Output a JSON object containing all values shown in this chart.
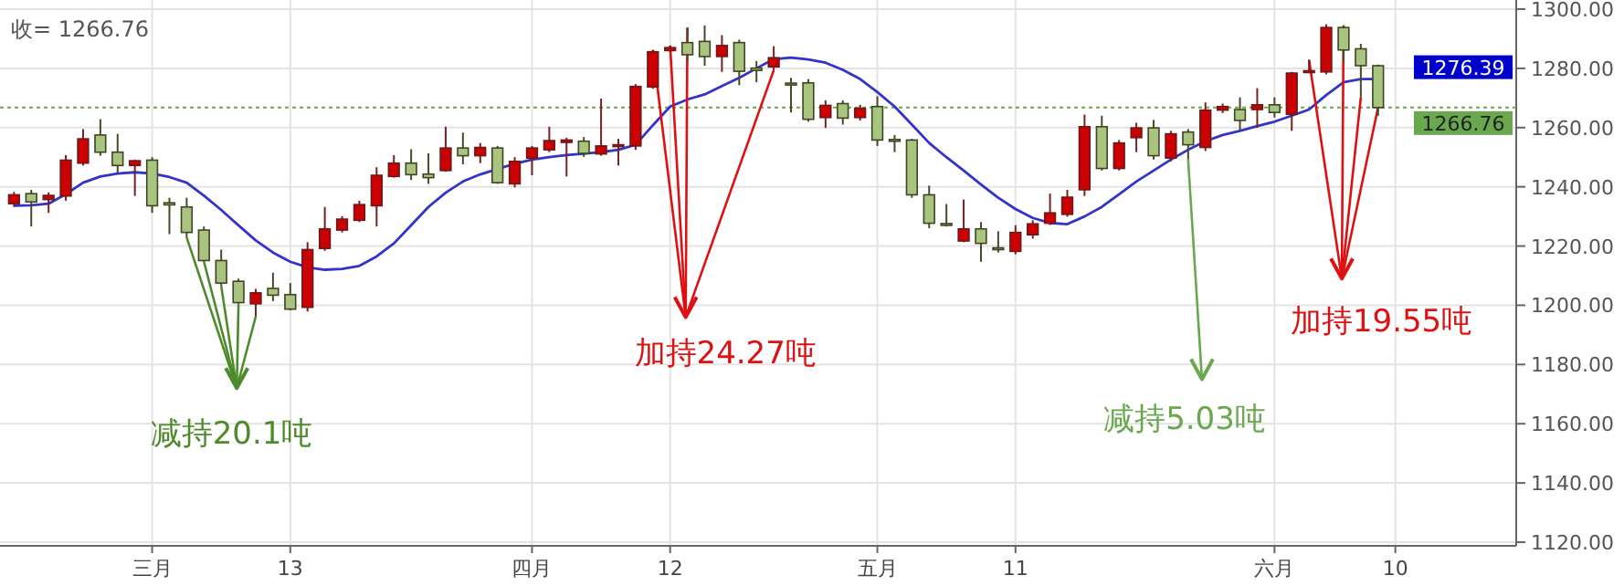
{
  "chart_data": {
    "type": "candlestick",
    "categories": [
      null,
      null,
      null,
      null,
      null,
      null,
      null,
      null,
      "三月",
      null,
      null,
      null,
      null,
      null,
      null,
      null,
      "13",
      null,
      null,
      null,
      null,
      null,
      null,
      null,
      null,
      null,
      null,
      null,
      null,
      null,
      "四月",
      null,
      null,
      null,
      null,
      null,
      null,
      null,
      "12",
      null,
      null,
      null,
      null,
      null,
      null,
      null,
      null,
      null,
      null,
      null,
      "五月",
      null,
      null,
      null,
      null,
      null,
      null,
      null,
      "11",
      null,
      null,
      null,
      null,
      null,
      null,
      null,
      null,
      null,
      null,
      null,
      null,
      null,
      null,
      "六月",
      null,
      null,
      null,
      null,
      null,
      null,
      "10"
    ],
    "ohlc": [
      [
        1234.3,
        1238.3,
        1233.2,
        1237.3
      ],
      [
        1237.7,
        1239.0,
        1226.6,
        1234.9
      ],
      [
        1235.7,
        1238.1,
        1231.2,
        1237.1
      ],
      [
        1236.9,
        1250.7,
        1235.3,
        1249.0
      ],
      [
        1248.0,
        1259.5,
        1247.2,
        1256.2
      ],
      [
        1257.5,
        1262.8,
        1250.5,
        1251.7
      ],
      [
        1251.7,
        1257.9,
        1244.5,
        1247.2
      ],
      [
        1247.2,
        1249.2,
        1236.9,
        1248.8
      ],
      [
        1249.0,
        1250.0,
        1231.2,
        1233.6
      ],
      [
        1234.6,
        1236.3,
        1224.0,
        1233.9
      ],
      [
        1233.2,
        1236.3,
        1222.9,
        1224.6
      ],
      [
        1225.4,
        1226.6,
        1214.7,
        1215.1
      ],
      [
        1215.1,
        1218.8,
        1206.5,
        1207.5
      ],
      [
        1208.1,
        1209.0,
        1200.3,
        1200.9
      ],
      [
        1200.5,
        1205.5,
        1196.2,
        1204.2
      ],
      [
        1205.7,
        1211.0,
        1201.4,
        1203.4
      ],
      [
        1203.6,
        1207.5,
        1198.3,
        1198.7
      ],
      [
        1199.3,
        1221.3,
        1197.9,
        1218.8
      ],
      [
        1219.2,
        1233.2,
        1218.4,
        1225.8
      ],
      [
        1225.4,
        1230.1,
        1224.6,
        1229.1
      ],
      [
        1228.7,
        1235.3,
        1228.1,
        1234.0
      ],
      [
        1233.6,
        1246.6,
        1226.6,
        1243.9
      ],
      [
        1243.5,
        1250.7,
        1243.1,
        1248.0
      ],
      [
        1248.0,
        1252.7,
        1242.3,
        1244.1
      ],
      [
        1244.3,
        1251.3,
        1241.0,
        1243.1
      ],
      [
        1245.5,
        1260.3,
        1245.1,
        1253.1
      ],
      [
        1253.1,
        1258.3,
        1247.6,
        1250.5
      ],
      [
        1250.5,
        1254.8,
        1248.0,
        1253.3
      ],
      [
        1253.1,
        1253.8,
        1241.0,
        1241.4
      ],
      [
        1241.0,
        1250.0,
        1239.8,
        1248.6
      ],
      [
        1249.7,
        1253.8,
        1243.9,
        1253.1
      ],
      [
        1252.5,
        1260.3,
        1251.7,
        1255.6
      ],
      [
        1255.0,
        1256.6,
        1243.5,
        1255.8
      ],
      [
        1255.4,
        1256.8,
        1250.1,
        1251.3
      ],
      [
        1251.1,
        1269.8,
        1250.5,
        1253.8
      ],
      [
        1253.6,
        1256.2,
        1247.2,
        1254.2
      ],
      [
        1253.8,
        1274.7,
        1252.5,
        1273.9
      ],
      [
        1273.7,
        1286.2,
        1273.1,
        1285.6
      ],
      [
        1286.0,
        1287.7,
        1285.6,
        1287.0
      ],
      [
        1288.7,
        1293.8,
        1282.5,
        1284.6
      ],
      [
        1289.1,
        1294.5,
        1280.9,
        1284.0
      ],
      [
        1284.0,
        1291.2,
        1278.8,
        1287.7
      ],
      [
        1288.7,
        1289.7,
        1274.3,
        1279.0
      ],
      [
        1280.1,
        1282.5,
        1275.3,
        1279.3
      ],
      [
        1280.5,
        1287.5,
        1279.4,
        1283.6
      ],
      [
        1275.0,
        1276.8,
        1265.1,
        1274.7
      ],
      [
        1275.1,
        1276.4,
        1262.0,
        1262.8
      ],
      [
        1263.4,
        1269.2,
        1259.9,
        1267.5
      ],
      [
        1268.1,
        1269.2,
        1261.0,
        1263.2
      ],
      [
        1263.4,
        1267.7,
        1262.4,
        1266.5
      ],
      [
        1267.1,
        1270.6,
        1253.8,
        1255.8
      ],
      [
        1256.0,
        1257.5,
        1251.7,
        1255.4
      ],
      [
        1255.8,
        1256.2,
        1236.3,
        1237.3
      ],
      [
        1237.3,
        1240.4,
        1226.0,
        1227.7
      ],
      [
        1227.6,
        1234.2,
        1226.6,
        1227.2
      ],
      [
        1221.7,
        1235.7,
        1221.3,
        1225.8
      ],
      [
        1225.8,
        1228.1,
        1214.7,
        1220.9
      ],
      [
        1219.4,
        1225.0,
        1217.8,
        1219.0
      ],
      [
        1218.2,
        1227.0,
        1217.2,
        1224.6
      ],
      [
        1223.8,
        1228.7,
        1222.5,
        1227.5
      ],
      [
        1227.7,
        1237.7,
        1227.1,
        1231.2
      ],
      [
        1230.7,
        1239.0,
        1229.9,
        1236.5
      ],
      [
        1239.0,
        1264.4,
        1236.9,
        1260.3
      ],
      [
        1260.3,
        1264.0,
        1245.5,
        1246.2
      ],
      [
        1246.2,
        1255.8,
        1245.5,
        1254.8
      ],
      [
        1256.6,
        1261.6,
        1251.7,
        1259.9
      ],
      [
        1259.9,
        1262.6,
        1249.2,
        1250.5
      ],
      [
        1249.7,
        1258.9,
        1248.6,
        1257.9
      ],
      [
        1258.5,
        1259.5,
        1249.2,
        1254.2
      ],
      [
        1253.3,
        1268.5,
        1252.1,
        1265.9
      ],
      [
        1265.9,
        1268.1,
        1264.9,
        1267.1
      ],
      [
        1266.1,
        1270.2,
        1258.9,
        1262.4
      ],
      [
        1266.1,
        1273.3,
        1259.9,
        1267.7
      ],
      [
        1267.7,
        1270.2,
        1263.4,
        1265.1
      ],
      [
        1264.5,
        1278.8,
        1258.9,
        1278.4
      ],
      [
        1278.8,
        1282.9,
        1278.4,
        1279.2
      ],
      [
        1278.8,
        1294.9,
        1278.0,
        1293.8
      ],
      [
        1293.8,
        1294.5,
        1282.5,
        1286.2
      ],
      [
        1286.6,
        1288.3,
        1270.2,
        1280.9
      ],
      [
        1280.9,
        1281.3,
        1264.0,
        1266.76
      ],
      null
    ],
    "series": [
      {
        "type": "line",
        "color": "#3333cc",
        "values": [
          1233.6,
          1233.8,
          1234.3,
          1237.5,
          1241.4,
          1243.5,
          1244.5,
          1244.9,
          1244.5,
          1243.3,
          1241.4,
          1237.0,
          1232.2,
          1227.0,
          1221.9,
          1217.8,
          1214.7,
          1212.8,
          1212.0,
          1212.3,
          1213.3,
          1216.5,
          1220.9,
          1227.0,
          1233.2,
          1238.0,
          1241.8,
          1244.2,
          1246.0,
          1247.8,
          1249.2,
          1250.0,
          1250.7,
          1251.2,
          1251.7,
          1252.5,
          1254.2,
          1260.8,
          1267.1,
          1269.5,
          1271.2,
          1274.0,
          1276.8,
          1280.0,
          1283.1,
          1283.6,
          1283.0,
          1281.9,
          1279.5,
          1276.4,
          1272.0,
          1267.1,
          1261.0,
          1254.8,
          1250.0,
          1245.5,
          1240.8,
          1236.3,
          1232.5,
          1229.5,
          1227.8,
          1227.4,
          1230.0,
          1233.2,
          1237.5,
          1241.8,
          1245.5,
          1249.2,
          1252.5,
          1255.4,
          1257.5,
          1258.9,
          1260.5,
          1262.0,
          1264.0,
          1266.1,
          1271.0,
          1275.3,
          1276.4,
          1276.39,
          null
        ]
      }
    ],
    "ylim": [
      1120,
      1300
    ],
    "yticks": [
      {
        "value": 1120,
        "label": "1120.00"
      },
      {
        "value": 1140,
        "label": "1140.00"
      },
      {
        "value": 1160,
        "label": "1160.00"
      },
      {
        "value": 1180,
        "label": "1180.00"
      },
      {
        "value": 1200,
        "label": "1200.00"
      },
      {
        "value": 1220,
        "label": "1220.00"
      },
      {
        "value": 1240,
        "label": "1240.00"
      },
      {
        "value": 1260,
        "label": "1260.00"
      },
      {
        "value": 1280,
        "label": "1280.00"
      },
      {
        "value": 1300,
        "label": "1300.00"
      }
    ],
    "grid": true,
    "ref_lines": [
      {
        "axis": "y",
        "value": 1266.76,
        "label": "1266.76",
        "color": "#6aa84f",
        "line_style": "dotted"
      }
    ],
    "annotations": [
      "收= 1266.76",
      "减持20.1吨",
      "加持24.27吨",
      "减持5.03吨",
      "加持19.55吨",
      "1276.39"
    ]
  }
}
